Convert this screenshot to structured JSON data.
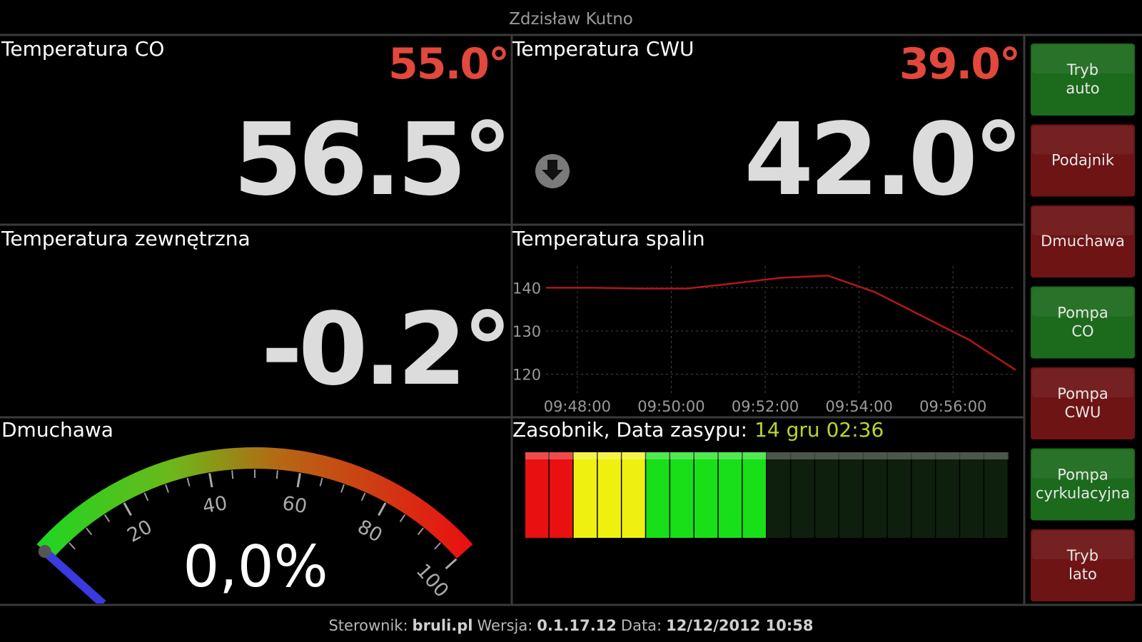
{
  "header": {
    "title": "Zdzisław Kutno"
  },
  "panels": {
    "co": {
      "title": "Temperatura CO",
      "setpoint": "55.0°",
      "value": "56.5°"
    },
    "cwu": {
      "title": "Temperatura CWU",
      "setpoint": "39.0°",
      "value": "42.0°"
    },
    "outside": {
      "title": "Temperatura zewnętrzna",
      "value": "-0.2°"
    }
  },
  "flue_chart": {
    "type": "line",
    "title": "Temperatura spalin",
    "x": [
      "09:47:20",
      "09:48:20",
      "09:49:20",
      "09:50:20",
      "09:51:20",
      "09:52:20",
      "09:53:20",
      "09:54:20",
      "09:55:20",
      "09:56:20",
      "09:57:20"
    ],
    "values": [
      140,
      140,
      139.8,
      139.8,
      141,
      142.3,
      142.8,
      139,
      133.5,
      128,
      121
    ],
    "xlim": [
      "09:47:20",
      "09:57:20"
    ],
    "xticks": [
      "09:48:00",
      "09:50:00",
      "09:52:00",
      "09:54:00",
      "09:56:00"
    ],
    "ylim": [
      115,
      145
    ],
    "yticks": [
      120,
      130,
      140
    ],
    "color": "#b01818",
    "grid": true
  },
  "blower": {
    "title": "Dmuchawa",
    "value": 0,
    "value_label": "0,0%",
    "lim": [
      0,
      100
    ],
    "ticks": [
      20,
      40,
      60,
      80,
      100
    ]
  },
  "hopper": {
    "title": "Zasobnik, Data zasypu:",
    "date": "14 gru 02:36",
    "filled_segments": 10,
    "segments": 20
  },
  "buttons": [
    {
      "lines": [
        "Tryb",
        "auto"
      ],
      "color": "#1c6a1c"
    },
    {
      "lines": [
        "Podajnik"
      ],
      "color": "#6e1414"
    },
    {
      "lines": [
        "Dmuchawa"
      ],
      "color": "#6e1414"
    },
    {
      "lines": [
        "Pompa",
        "CO"
      ],
      "color": "#1c6a1c"
    },
    {
      "lines": [
        "Pompa",
        "CWU"
      ],
      "color": "#6e1414"
    },
    {
      "lines": [
        "Pompa",
        "cyrkulacyjna"
      ],
      "color": "#1c6a1c"
    },
    {
      "lines": [
        "Tryb",
        "lato"
      ],
      "color": "#6e1414"
    }
  ],
  "footer": [
    "Sterownik:",
    "bruli.pl",
    "Wersja:",
    "0.1.17.12",
    "Data:",
    "12/12/2012 10:58"
  ]
}
